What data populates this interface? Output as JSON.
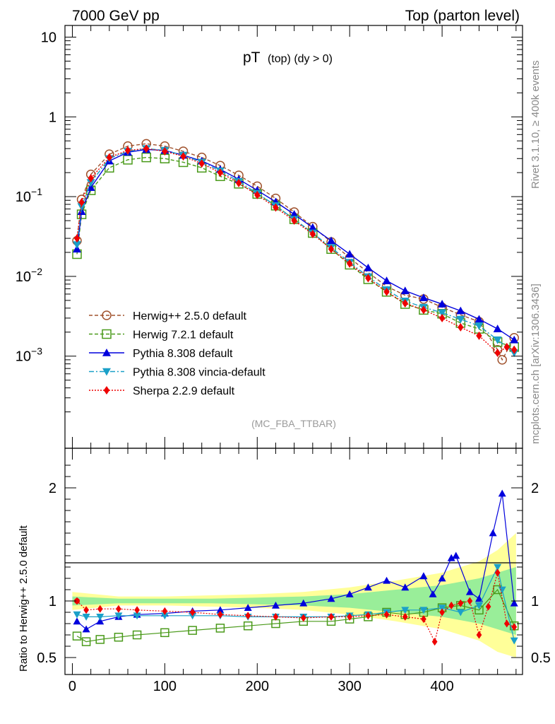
{
  "header": {
    "left": "7000 GeV pp",
    "right": "Top (parton level)"
  },
  "side_labels": {
    "rivet": "Rivet 3.1.10, ≥ 400k events",
    "mcplots": "mcplots.cern.ch [arXiv:1306.3436]"
  },
  "colors": {
    "herwigpp": "#a0522d",
    "herwig7": "#4a9a1a",
    "pythia": "#0000dd",
    "vincia": "#1ba0c8",
    "sherpa": "#ee0000",
    "band_yellow": "#ffff99",
    "band_green": "#99ee99"
  },
  "chart_data": [
    {
      "type": "scatter",
      "panel": "main",
      "title": "pT (top) (dy > 0)",
      "title_main": "pT",
      "title_sub": "(top) (dy > 0)",
      "watermark": "(MC_FBA_TTBAR)",
      "yscale": "log",
      "xlim": [
        -8,
        487
      ],
      "ylim": [
        7e-05,
        14
      ],
      "yticks": [
        {
          "value": 10,
          "label": "10"
        },
        {
          "value": 1,
          "label": "1"
        },
        {
          "value": 0.1,
          "label": "10",
          "exp": "−1"
        },
        {
          "value": 0.01,
          "label": "10",
          "exp": "−2"
        },
        {
          "value": 0.001,
          "label": "10",
          "exp": "−3"
        }
      ],
      "legend_position": "center-left",
      "series": [
        {
          "name": "Herwig++ 2.5.0 default",
          "color": "#a0522d",
          "marker": "circle-open",
          "dash": "dashed",
          "x": [
            5,
            10,
            20,
            40,
            60,
            80,
            100,
            120,
            140,
            160,
            180,
            200,
            220,
            240,
            260,
            280,
            300,
            320,
            340,
            360,
            380,
            400,
            420,
            440,
            460,
            465,
            478
          ],
          "y": [
            0.028,
            0.092,
            0.19,
            0.34,
            0.43,
            0.46,
            0.43,
            0.37,
            0.31,
            0.245,
            0.185,
            0.135,
            0.095,
            0.064,
            0.042,
            0.027,
            0.017,
            0.0112,
            0.0075,
            0.0058,
            0.0052,
            0.0041,
            0.0033,
            0.0027,
            0.0012,
            0.0009,
            0.0017
          ]
        },
        {
          "name": "Herwig 7.2.1 default",
          "color": "#4a9a1a",
          "marker": "square-open",
          "dash": "dashed",
          "x": [
            5,
            10,
            20,
            40,
            60,
            80,
            100,
            120,
            140,
            160,
            180,
            200,
            220,
            240,
            260,
            280,
            300,
            320,
            340,
            360,
            380,
            400,
            420,
            440,
            460,
            478
          ],
          "y": [
            0.019,
            0.06,
            0.12,
            0.23,
            0.29,
            0.31,
            0.3,
            0.27,
            0.23,
            0.18,
            0.145,
            0.108,
            0.077,
            0.052,
            0.035,
            0.022,
            0.014,
            0.0092,
            0.0064,
            0.0045,
            0.0038,
            0.0034,
            0.0026,
            0.0022,
            0.0015,
            0.0013
          ]
        },
        {
          "name": "Pythia 8.308 default",
          "color": "#0000dd",
          "marker": "triangle-up",
          "dash": "solid",
          "x": [
            5,
            10,
            20,
            40,
            60,
            80,
            100,
            120,
            140,
            160,
            180,
            200,
            220,
            240,
            260,
            280,
            300,
            320,
            340,
            360,
            380,
            400,
            420,
            440,
            460,
            478
          ],
          "y": [
            0.022,
            0.065,
            0.13,
            0.28,
            0.36,
            0.39,
            0.38,
            0.33,
            0.28,
            0.22,
            0.165,
            0.12,
            0.086,
            0.06,
            0.041,
            0.028,
            0.019,
            0.0128,
            0.0088,
            0.0066,
            0.0054,
            0.0045,
            0.0037,
            0.0029,
            0.0022,
            0.0016
          ]
        },
        {
          "name": "Pythia 8.308 vincia-default",
          "color": "#1ba0c8",
          "marker": "triangle-down",
          "dash": "dashdot",
          "x": [
            5,
            10,
            20,
            40,
            60,
            80,
            100,
            120,
            140,
            160,
            180,
            200,
            220,
            240,
            260,
            280,
            300,
            320,
            340,
            360,
            380,
            400,
            420,
            440,
            460,
            478
          ],
          "y": [
            0.025,
            0.075,
            0.15,
            0.3,
            0.37,
            0.4,
            0.38,
            0.33,
            0.27,
            0.21,
            0.155,
            0.11,
            0.077,
            0.052,
            0.035,
            0.023,
            0.015,
            0.0099,
            0.0068,
            0.0049,
            0.0041,
            0.0035,
            0.0029,
            0.0024,
            0.0016,
            0.0011
          ]
        },
        {
          "name": "Sherpa 2.2.9 default",
          "color": "#ee0000",
          "marker": "diamond",
          "dash": "dotted",
          "x": [
            5,
            10,
            20,
            40,
            60,
            80,
            100,
            120,
            140,
            160,
            180,
            200,
            220,
            240,
            260,
            280,
            300,
            320,
            340,
            360,
            380,
            400,
            420,
            440,
            460,
            470,
            478
          ],
          "y": [
            0.03,
            0.085,
            0.17,
            0.31,
            0.38,
            0.4,
            0.37,
            0.32,
            0.26,
            0.2,
            0.148,
            0.105,
            0.073,
            0.05,
            0.034,
            0.022,
            0.0145,
            0.0095,
            0.0064,
            0.0046,
            0.0038,
            0.003,
            0.0023,
            0.0018,
            0.0011,
            0.0013,
            0.0012
          ]
        }
      ]
    },
    {
      "type": "scatter",
      "panel": "ratio",
      "ylabel": "Ratio to Herwig++ 2.5.0 default",
      "xlim": [
        -8,
        487
      ],
      "ylim": [
        0.35,
        2.35
      ],
      "yticks": [
        0.5,
        1,
        2
      ],
      "xticks": [
        0,
        100,
        200,
        300,
        400
      ],
      "reference_band": {
        "x": [
          0,
          50,
          100,
          150,
          200,
          250,
          300,
          350,
          400,
          440,
          460,
          480
        ],
        "yellow_up": [
          1.08,
          1.04,
          1.04,
          1.05,
          1.06,
          1.08,
          1.12,
          1.18,
          1.25,
          1.35,
          1.45,
          1.6
        ],
        "yellow_down": [
          0.92,
          0.96,
          0.96,
          0.95,
          0.94,
          0.92,
          0.88,
          0.82,
          0.75,
          0.65,
          0.55,
          0.5
        ],
        "green_up": [
          1.04,
          1.02,
          1.02,
          1.02,
          1.03,
          1.04,
          1.06,
          1.1,
          1.14,
          1.2,
          1.25,
          1.3
        ],
        "green_down": [
          0.96,
          0.98,
          0.98,
          0.98,
          0.97,
          0.96,
          0.94,
          0.9,
          0.86,
          0.8,
          0.75,
          0.7
        ]
      },
      "series": [
        {
          "name": "Herwig 7.2.1 default",
          "color": "#4a9a1a",
          "marker": "square-open",
          "x": [
            5,
            15,
            30,
            50,
            70,
            100,
            130,
            160,
            190,
            220,
            250,
            280,
            300,
            320,
            340,
            360,
            380,
            400,
            420,
            440,
            460,
            478
          ],
          "y": [
            0.69,
            0.64,
            0.66,
            0.68,
            0.7,
            0.72,
            0.74,
            0.76,
            0.78,
            0.8,
            0.82,
            0.82,
            0.84,
            0.86,
            0.9,
            0.88,
            0.9,
            0.94,
            0.96,
            0.92,
            1.1,
            0.78
          ]
        },
        {
          "name": "Pythia 8.308 default",
          "color": "#0000dd",
          "marker": "triangle-up",
          "x": [
            5,
            15,
            30,
            50,
            70,
            100,
            130,
            160,
            190,
            220,
            250,
            280,
            300,
            320,
            340,
            360,
            380,
            390,
            400,
            410,
            415,
            430,
            440,
            455,
            465,
            478
          ],
          "y": [
            0.82,
            0.75,
            0.82,
            0.86,
            0.88,
            0.89,
            0.91,
            0.92,
            0.94,
            0.96,
            0.98,
            1.02,
            1.06,
            1.12,
            1.18,
            1.12,
            1.22,
            1.06,
            1.2,
            1.38,
            1.4,
            1.08,
            1.02,
            1.6,
            1.95,
            0.98
          ]
        },
        {
          "name": "Pythia 8.308 vincia-default",
          "color": "#1ba0c8",
          "marker": "triangle-down",
          "x": [
            5,
            15,
            30,
            50,
            70,
            100,
            130,
            160,
            190,
            220,
            250,
            280,
            300,
            320,
            340,
            360,
            380,
            400,
            420,
            440,
            460,
            465,
            478
          ],
          "y": [
            0.88,
            0.86,
            0.86,
            0.87,
            0.87,
            0.87,
            0.87,
            0.87,
            0.86,
            0.86,
            0.86,
            0.86,
            0.87,
            0.88,
            0.9,
            0.92,
            0.92,
            0.94,
            0.9,
            0.96,
            1.3,
            1.1,
            0.65
          ]
        },
        {
          "name": "Sherpa 2.2.9 default",
          "color": "#ee0000",
          "marker": "diamond",
          "x": [
            5,
            15,
            30,
            50,
            70,
            100,
            130,
            160,
            190,
            220,
            250,
            280,
            300,
            320,
            340,
            360,
            380,
            392,
            400,
            410,
            420,
            430,
            440,
            450,
            460,
            470,
            478
          ],
          "y": [
            1.0,
            0.92,
            0.93,
            0.93,
            0.92,
            0.91,
            0.9,
            0.88,
            0.87,
            0.86,
            0.85,
            0.86,
            0.86,
            0.87,
            0.88,
            0.86,
            0.84,
            0.64,
            0.9,
            0.96,
            0.98,
            1.0,
            0.7,
            0.95,
            1.25,
            0.8,
            0.77
          ]
        }
      ]
    }
  ]
}
